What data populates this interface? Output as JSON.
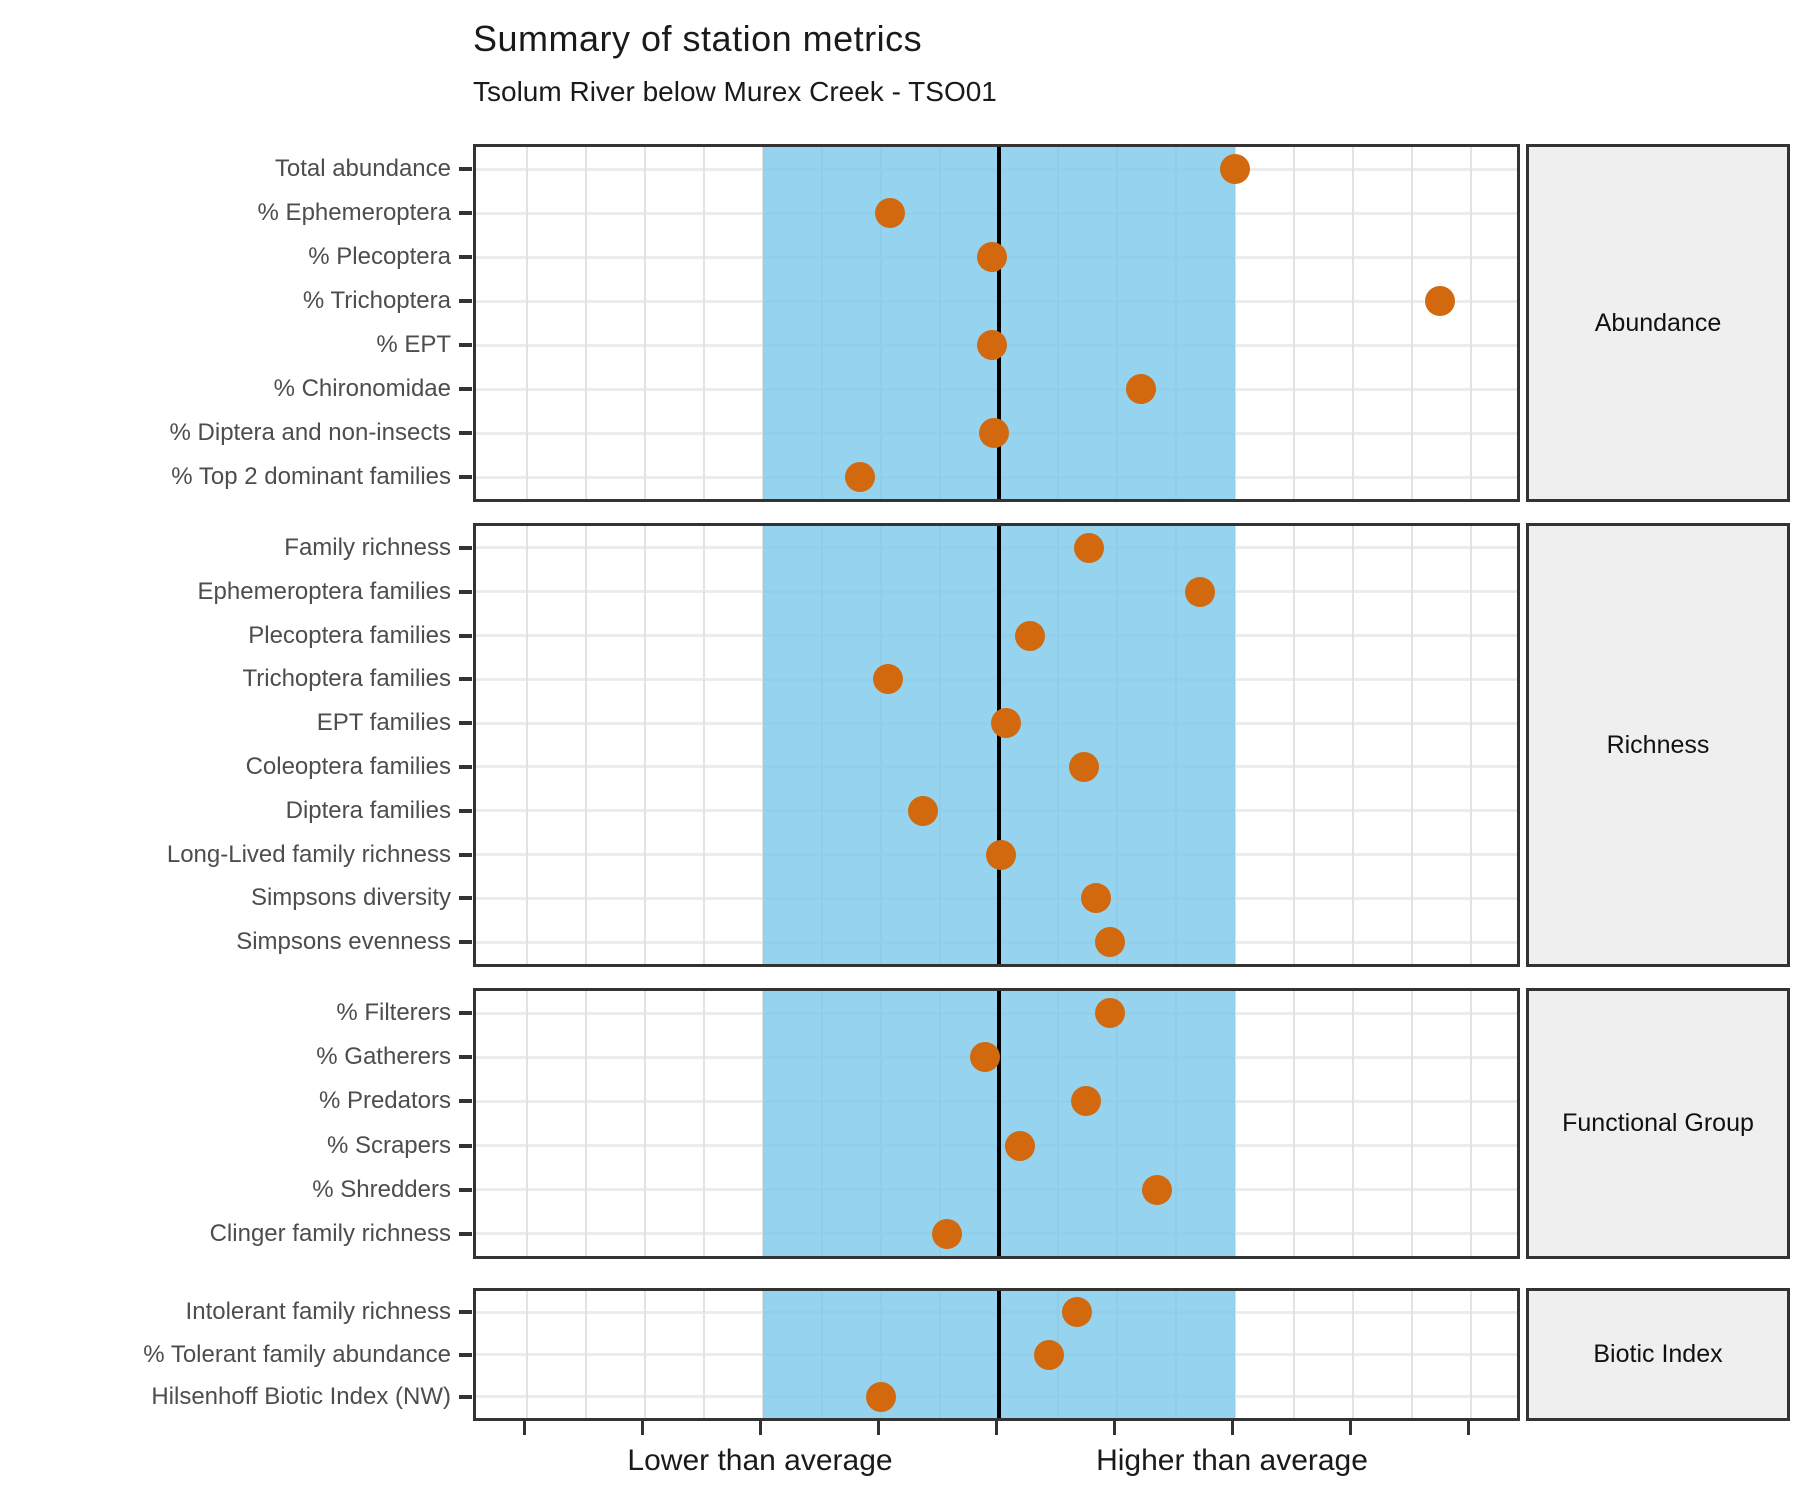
{
  "header": {
    "title": "Summary of station metrics",
    "subtitle": "Tsolum River below Murex Creek - TSO01"
  },
  "x_axis": {
    "label_lower": "Lower than average",
    "label_higher": "Higher than average",
    "label_lower_position_sd": -1,
    "label_higher_position_sd": 1,
    "ticks_sd": [
      -2,
      -1.5,
      -1,
      -0.5,
      0,
      0.5,
      1,
      1.5,
      2
    ],
    "gridline_step_sd": 0.25,
    "range_sd": [
      -2.22,
      2.22
    ],
    "band_sd": [
      -1,
      1
    ],
    "center_sd": 0
  },
  "colors": {
    "point": "#d2690e",
    "band": "#79c7eb",
    "center_line": "#000000",
    "panel_border": "#333333",
    "gridline": "#e3e3e3",
    "axis_text": "#4d4d4d",
    "axis_label_text": "#1a1a1a",
    "strip_background": "#efefef",
    "title_text": "#1a1a1a"
  },
  "chart_data": {
    "type": "scatter",
    "subtype": "faceted-horizontal-dot-plot",
    "title": "Summary of station metrics",
    "subtitle": "Tsolum River below Murex Creek - TSO01",
    "xlabel_left": "Lower than average",
    "xlabel_right": "Higher than average",
    "x_unit": "deviation from average (blue band = average range, black line = average)",
    "xlim": [
      -2.22,
      2.22
    ],
    "grid": true,
    "strip_position": "right",
    "facets": [
      {
        "strip_label": "Abundance",
        "rows": [
          {
            "label": "Total abundance",
            "value_sd": 1.0
          },
          {
            "label": "% Ephemeroptera",
            "value_sd": -0.46
          },
          {
            "label": "% Plecoptera",
            "value_sd": -0.03
          },
          {
            "label": "% Trichoptera",
            "value_sd": 1.87
          },
          {
            "label": "% EPT",
            "value_sd": -0.03
          },
          {
            "label": "% Chironomidae",
            "value_sd": 0.6
          },
          {
            "label": "% Diptera and non-insects",
            "value_sd": -0.02
          },
          {
            "label": "% Top 2 dominant families",
            "value_sd": -0.59
          }
        ]
      },
      {
        "strip_label": "Richness",
        "rows": [
          {
            "label": "Family richness",
            "value_sd": 0.38
          },
          {
            "label": "Ephemeroptera families",
            "value_sd": 0.85
          },
          {
            "label": "Plecoptera families",
            "value_sd": 0.13
          },
          {
            "label": "Trichoptera families",
            "value_sd": -0.47
          },
          {
            "label": "EPT families",
            "value_sd": 0.03
          },
          {
            "label": "Coleoptera families",
            "value_sd": 0.36
          },
          {
            "label": "Diptera families",
            "value_sd": -0.32
          },
          {
            "label": "Long-Lived family richness",
            "value_sd": 0.01
          },
          {
            "label": "Simpsons diversity",
            "value_sd": 0.41
          },
          {
            "label": "Simpsons evenness",
            "value_sd": 0.47
          }
        ]
      },
      {
        "strip_label": "Functional Group",
        "rows": [
          {
            "label": "% Filterers",
            "value_sd": 0.47
          },
          {
            "label": "% Gatherers",
            "value_sd": -0.06
          },
          {
            "label": "% Predators",
            "value_sd": 0.37
          },
          {
            "label": "% Scrapers",
            "value_sd": 0.09
          },
          {
            "label": "% Shredders",
            "value_sd": 0.67
          },
          {
            "label": "Clinger family richness",
            "value_sd": -0.22
          }
        ]
      },
      {
        "strip_label": "Biotic Index",
        "rows": [
          {
            "label": "Intolerant family richness",
            "value_sd": 0.33
          },
          {
            "label": "% Tolerant family abundance",
            "value_sd": 0.21
          },
          {
            "label": "Hilsenhoff Biotic Index (NW)",
            "value_sd": -0.5
          }
        ]
      }
    ]
  }
}
